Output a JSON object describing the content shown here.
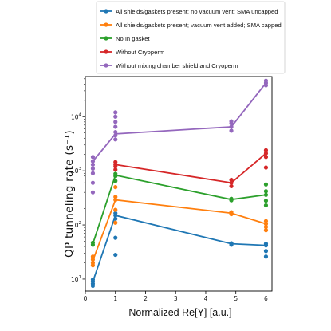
{
  "chart_data": {
    "type": "line",
    "xlabel": "Normalized Re[Y] [a.u.]",
    "ylabel": "QP tunneling rate (s⁻¹)",
    "xlim": [
      0,
      6.2
    ],
    "ylim": [
      6,
      55000
    ],
    "yscale": "log",
    "grid": false,
    "legend": "top",
    "xticks": [
      {
        "value": 0,
        "label": "0"
      },
      {
        "value": 1,
        "label": "1"
      },
      {
        "value": 2,
        "label": "2"
      },
      {
        "value": 3,
        "label": "3"
      },
      {
        "value": 4,
        "label": "4"
      },
      {
        "value": 5,
        "label": "5"
      },
      {
        "value": 6,
        "label": "6"
      }
    ],
    "yticks": [
      {
        "value": 10,
        "base": "10",
        "exp": "1"
      },
      {
        "value": 100,
        "base": "10",
        "exp": "2"
      },
      {
        "value": 1000,
        "base": "10",
        "exp": "3"
      },
      {
        "value": 10000,
        "base": "10",
        "exp": "4"
      }
    ],
    "series": [
      {
        "name": "All shields/gaskets present; no vacuum vent; SMA uncapped",
        "color": "#1f77b4",
        "x": [
          0.25,
          1.0,
          4.85,
          6.0
        ],
        "y": [
          9,
          150,
          45,
          42
        ],
        "scatter": [
          [
            0.25,
            7.5
          ],
          [
            0.25,
            8.2
          ],
          [
            0.25,
            9.0
          ],
          [
            0.25,
            9.8
          ],
          [
            1.0,
            28
          ],
          [
            1.0,
            58
          ],
          [
            1.0,
            130
          ],
          [
            1.0,
            150
          ],
          [
            1.0,
            165
          ],
          [
            4.85,
            43
          ],
          [
            4.85,
            46
          ],
          [
            6.0,
            26
          ],
          [
            6.0,
            33
          ],
          [
            6.0,
            42
          ],
          [
            6.0,
            45
          ]
        ]
      },
      {
        "name": "All shields/gaskets present; vacuum vent added; SMA capped",
        "color": "#ff7f0e",
        "x": [
          0.25,
          1.0,
          4.85,
          6.0
        ],
        "y": [
          22,
          290,
          165,
          105
        ],
        "scatter": [
          [
            0.25,
            18
          ],
          [
            0.25,
            20
          ],
          [
            0.25,
            23
          ],
          [
            0.25,
            26
          ],
          [
            1.0,
            110
          ],
          [
            1.0,
            190
          ],
          [
            1.0,
            290
          ],
          [
            1.0,
            330
          ],
          [
            1.0,
            500
          ],
          [
            4.85,
            158
          ],
          [
            4.85,
            172
          ],
          [
            6.0,
            80
          ],
          [
            6.0,
            92
          ],
          [
            6.0,
            105
          ],
          [
            6.0,
            118
          ]
        ]
      },
      {
        "name": "No In gasket",
        "color": "#2ca02c",
        "x": [
          0.25,
          1.0,
          4.85,
          6.0
        ],
        "y": [
          45,
          830,
          295,
          360
        ],
        "scatter": [
          [
            0.25,
            43
          ],
          [
            0.25,
            47
          ],
          [
            1.0,
            650
          ],
          [
            1.0,
            800
          ],
          [
            1.0,
            880
          ],
          [
            4.85,
            285
          ],
          [
            4.85,
            305
          ],
          [
            6.0,
            230
          ],
          [
            6.0,
            280
          ],
          [
            6.0,
            360
          ],
          [
            6.0,
            420
          ],
          [
            6.0,
            560
          ]
        ]
      },
      {
        "name": "Without Cryoperm",
        "color": "#d62728",
        "x": [
          1.0,
          4.85,
          6.0
        ],
        "y": [
          1300,
          600,
          2100
        ],
        "scatter": [
          [
            1.0,
            1050
          ],
          [
            1.0,
            1200
          ],
          [
            1.0,
            1300
          ],
          [
            1.0,
            1450
          ],
          [
            4.85,
            520
          ],
          [
            4.85,
            600
          ],
          [
            4.85,
            680
          ],
          [
            6.0,
            1150
          ],
          [
            6.0,
            1800
          ],
          [
            6.0,
            2100
          ],
          [
            6.0,
            2400
          ]
        ]
      },
      {
        "name": "Without mixing chamber shield and Cryoperm",
        "color": "#9467bd",
        "x": [
          0.25,
          1.0,
          4.85,
          6.0
        ],
        "y": [
          1500,
          4800,
          6500,
          42000
        ],
        "scatter": [
          [
            0.25,
            400
          ],
          [
            0.25,
            600
          ],
          [
            0.25,
            900
          ],
          [
            0.25,
            1100
          ],
          [
            0.25,
            1300
          ],
          [
            0.25,
            1500
          ],
          [
            0.25,
            1800
          ],
          [
            1.0,
            3800
          ],
          [
            1.0,
            4500
          ],
          [
            1.0,
            5200
          ],
          [
            1.0,
            6500
          ],
          [
            1.0,
            8000
          ],
          [
            1.0,
            10000
          ],
          [
            1.0,
            12000
          ],
          [
            4.85,
            5500
          ],
          [
            4.85,
            6500
          ],
          [
            4.85,
            7500
          ],
          [
            4.85,
            8200
          ],
          [
            6.0,
            38000
          ],
          [
            6.0,
            42000
          ],
          [
            6.0,
            46000
          ]
        ]
      }
    ]
  }
}
